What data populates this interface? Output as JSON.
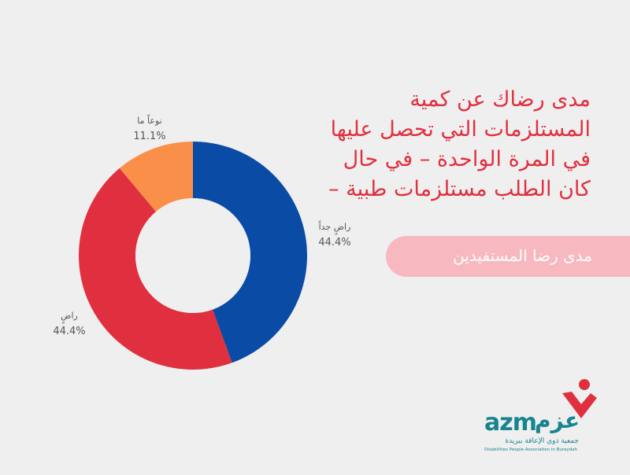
{
  "chart_data": {
    "type": "pie",
    "donut": true,
    "title": "مدى رضاك عن كمية المستلزمات التي تحصل عليها في المرة الواحدة – في حال كان الطلب مستلزمات طبية –",
    "title_lines": [
      "مدى رضاك عن كمية",
      "المستلزمات التي تحصل عليها",
      "في المرة الواحدة – في حال",
      "كان الطلب مستلزمات طبية –"
    ],
    "categories": [
      "راضٍ جداً",
      "راضٍ",
      "نوعاً ما"
    ],
    "values": [
      44.4,
      44.4,
      11.1
    ],
    "value_labels": [
      "44.4%",
      "44.4%",
      "11.1%"
    ],
    "colors": [
      "#0a4ba6",
      "#e0303f",
      "#f98f49"
    ]
  },
  "subtitle": "مدى رضا المستفيدين",
  "logo": {
    "latin": "azm",
    "arabic": "عزم",
    "org_ar": "جمعية ذوي الإعاقة ببريدة",
    "org_en": "Disabilities People Association in Buraydah",
    "colors": {
      "teal": "#17858f",
      "red": "#e0303f"
    }
  }
}
